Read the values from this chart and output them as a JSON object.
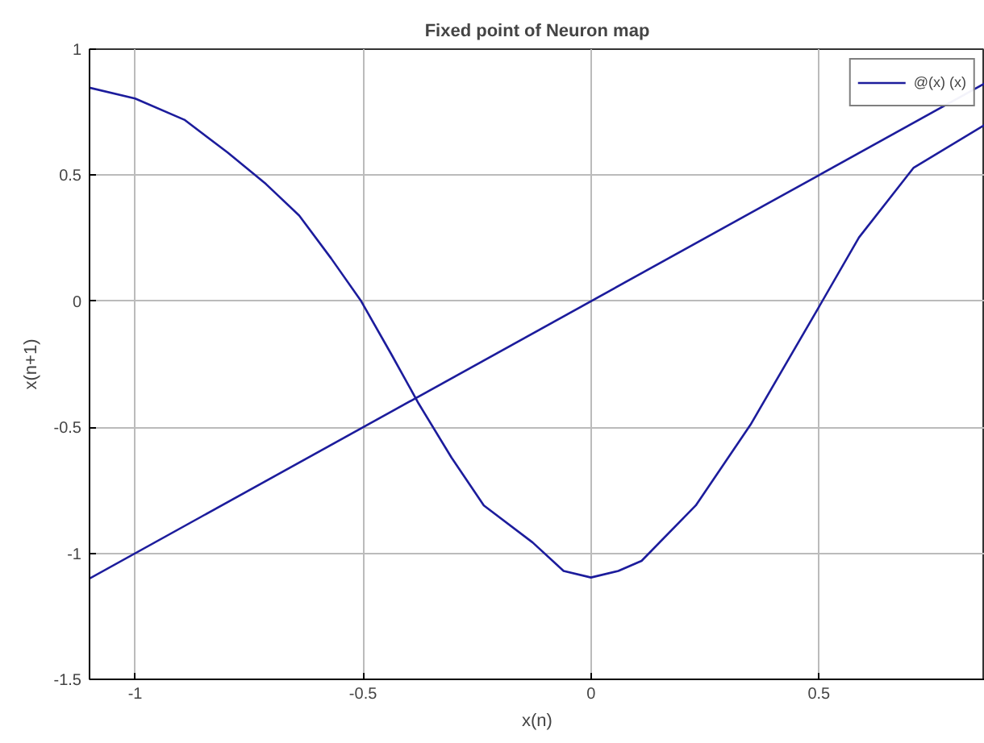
{
  "chart_data": {
    "type": "line",
    "title": "Fixed point of Neuron map",
    "xlabel": "x(n)",
    "ylabel": "x(n+1)",
    "xlim": [
      -1.1,
      0.864
    ],
    "ylim": [
      -1.5,
      1
    ],
    "xticks": [
      -1,
      -0.5,
      0,
      0.5
    ],
    "yticks": [
      -1.5,
      -1,
      -0.5,
      0,
      0.5,
      1
    ],
    "grid": true,
    "legend": "top right",
    "line_style": "solid",
    "marker": "none",
    "series": [
      {
        "color": "#1c1c9c",
        "x": [
          -1.1,
          -1,
          -0.892,
          -0.797,
          -0.713,
          -0.64,
          -0.57,
          -0.504,
          -0.438,
          -0.378,
          -0.306,
          -0.235,
          -0.128,
          -0.06,
          0,
          0.06,
          0.111,
          0.23,
          0.35,
          0.493,
          0.588,
          0.708,
          0.864
        ],
        "values": [
          0.847,
          0.804,
          0.72,
          0.59,
          0.465,
          0.34,
          0.17,
          0,
          -0.21,
          -0.406,
          -0.62,
          -0.81,
          -0.957,
          -1.07,
          -1.096,
          -1.07,
          -1.03,
          -0.81,
          -0.49,
          -0.045,
          0.253,
          0.53,
          0.7
        ]
      },
      {
        "name": "@(x) (x)",
        "color": "#1c1c9c",
        "x": [
          -1.1,
          0.864
        ],
        "values": [
          -1.1,
          0.864
        ]
      }
    ]
  }
}
